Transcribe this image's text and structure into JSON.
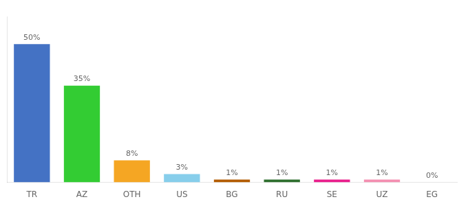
{
  "chart_data": {
    "type": "bar",
    "categories": [
      "TR",
      "AZ",
      "OTH",
      "US",
      "BG",
      "RU",
      "SE",
      "UZ",
      "EG"
    ],
    "values": [
      50,
      35,
      8,
      3,
      1,
      1,
      1,
      1,
      0
    ],
    "value_labels": [
      "50%",
      "35%",
      "8%",
      "3%",
      "1%",
      "1%",
      "1%",
      "1%",
      "0%"
    ],
    "data_labels": true,
    "colors": [
      "#4472c4",
      "#33cc33",
      "#f5a623",
      "#87ceeb",
      "#b35c00",
      "#2d6e2d",
      "#e91e8c",
      "#f48fb1",
      "#cccccc"
    ],
    "ylim": [
      0,
      60
    ],
    "tick_labels": "x",
    "grid": false
  }
}
